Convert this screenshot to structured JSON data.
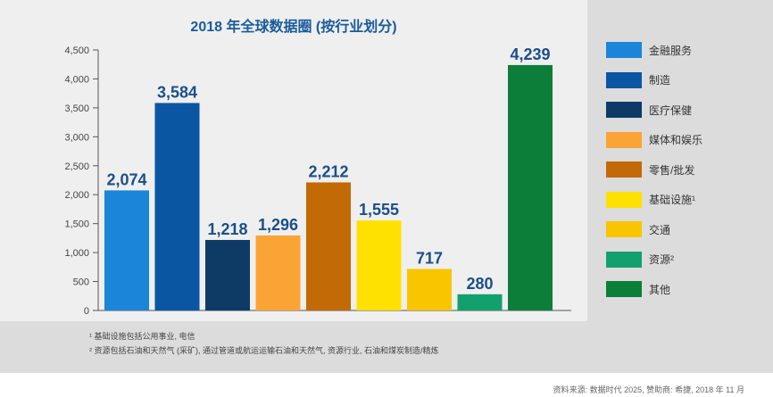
{
  "chart_data": {
    "type": "bar",
    "title": "2018 年全球数据圈 (按行业划分)",
    "xlabel": "",
    "ylabel": "",
    "ylim": [
      0,
      4500
    ],
    "yticks": [
      0,
      500,
      1000,
      1500,
      2000,
      2500,
      3000,
      3500,
      4000,
      4500
    ],
    "ytick_labels": [
      "0",
      "500",
      "1,000",
      "1,500",
      "2,000",
      "2,500",
      "3,000",
      "3,500",
      "4,000",
      "4,500"
    ],
    "grid": false,
    "legend_position": "right",
    "categories": [
      "金融服务",
      "制造",
      "医疗保健",
      "媒体和娱乐",
      "零售/批发",
      "基础设施¹",
      "交通",
      "资源²",
      "其他"
    ],
    "values": [
      2074,
      3584,
      1218,
      1296,
      2212,
      1555,
      717,
      280,
      4239
    ],
    "value_labels": [
      "2,074",
      "3,584",
      "1,218",
      "1,296",
      "2,212",
      "1,555",
      "717",
      "280",
      "4,239"
    ],
    "colors": [
      "#1a85d9",
      "#0a56a3",
      "#0d3b66",
      "#f9a435",
      "#c26a06",
      "#ffe100",
      "#f8c500",
      "#13a06e",
      "#0c7e3a"
    ]
  },
  "footnotes": [
    "¹ 基础设施包括公用事业, 电信",
    "² 资源包括石油和天然气 (采矿), 通过管道或航运运输石油和天然气, 资源行业, 石油和煤炭制造/精炼"
  ],
  "source": "资料来源: 数据时代 2025, 赞助商: 希捷, 2018 年 11 月"
}
